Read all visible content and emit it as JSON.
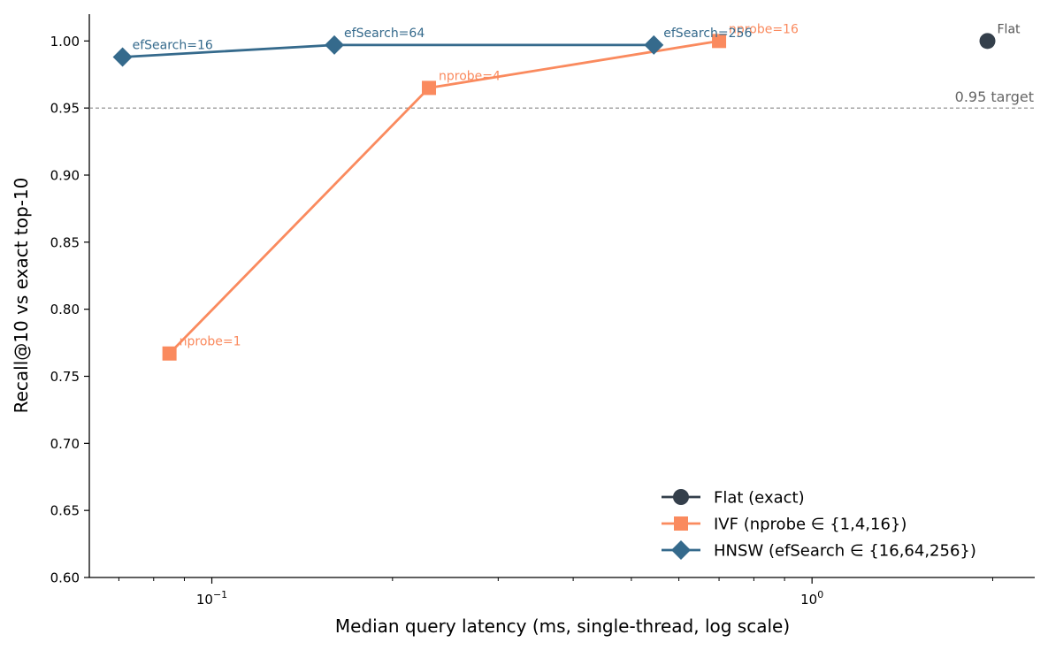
{
  "chart_data": {
    "type": "line",
    "title": "",
    "xlabel": "Median query latency (ms, single-thread, log scale)",
    "ylabel": "Recall@10 vs exact top-10",
    "x_scale": "log",
    "xlim": [
      0.0625,
      2.35
    ],
    "ylim": [
      0.6,
      1.02
    ],
    "x_ticks": [
      {
        "value": 0.1,
        "label": "10",
        "exp": "−1"
      },
      {
        "value": 1.0,
        "label": "10",
        "exp": "0"
      }
    ],
    "y_ticks": [
      {
        "value": 0.6,
        "label": "0.60"
      },
      {
        "value": 0.65,
        "label": "0.65"
      },
      {
        "value": 0.7,
        "label": "0.70"
      },
      {
        "value": 0.75,
        "label": "0.75"
      },
      {
        "value": 0.8,
        "label": "0.80"
      },
      {
        "value": 0.85,
        "label": "0.85"
      },
      {
        "value": 0.9,
        "label": "0.90"
      },
      {
        "value": 0.95,
        "label": "0.95"
      },
      {
        "value": 1.0,
        "label": "1.00"
      }
    ],
    "grid": false,
    "legend_position": "lower-right",
    "reference_line": {
      "y": 0.95,
      "label": "0.95 target",
      "color": "#888888"
    },
    "series": [
      {
        "name": "Flat (exact)",
        "color": "#343f4b",
        "marker": "circle",
        "points": [
          {
            "x": 1.96,
            "y": 1.0,
            "label": "Flat"
          }
        ]
      },
      {
        "name": "IVF (nprobe ∈ {1,4,16})",
        "color": "#fa8a5e",
        "marker": "square",
        "points": [
          {
            "x": 0.085,
            "y": 0.767,
            "label": "nprobe=1"
          },
          {
            "x": 0.23,
            "y": 0.965,
            "label": "nprobe=4"
          },
          {
            "x": 0.7,
            "y": 1.0,
            "label": "nprobe=16"
          }
        ]
      },
      {
        "name": "HNSW (efSearch ∈ {16,64,256})",
        "color": "#356a8c",
        "marker": "diamond",
        "points": [
          {
            "x": 0.071,
            "y": 0.988,
            "label": "efSearch=16"
          },
          {
            "x": 0.16,
            "y": 0.997,
            "label": "efSearch=64"
          },
          {
            "x": 0.545,
            "y": 0.997,
            "label": "efSearch=256"
          }
        ]
      }
    ]
  }
}
